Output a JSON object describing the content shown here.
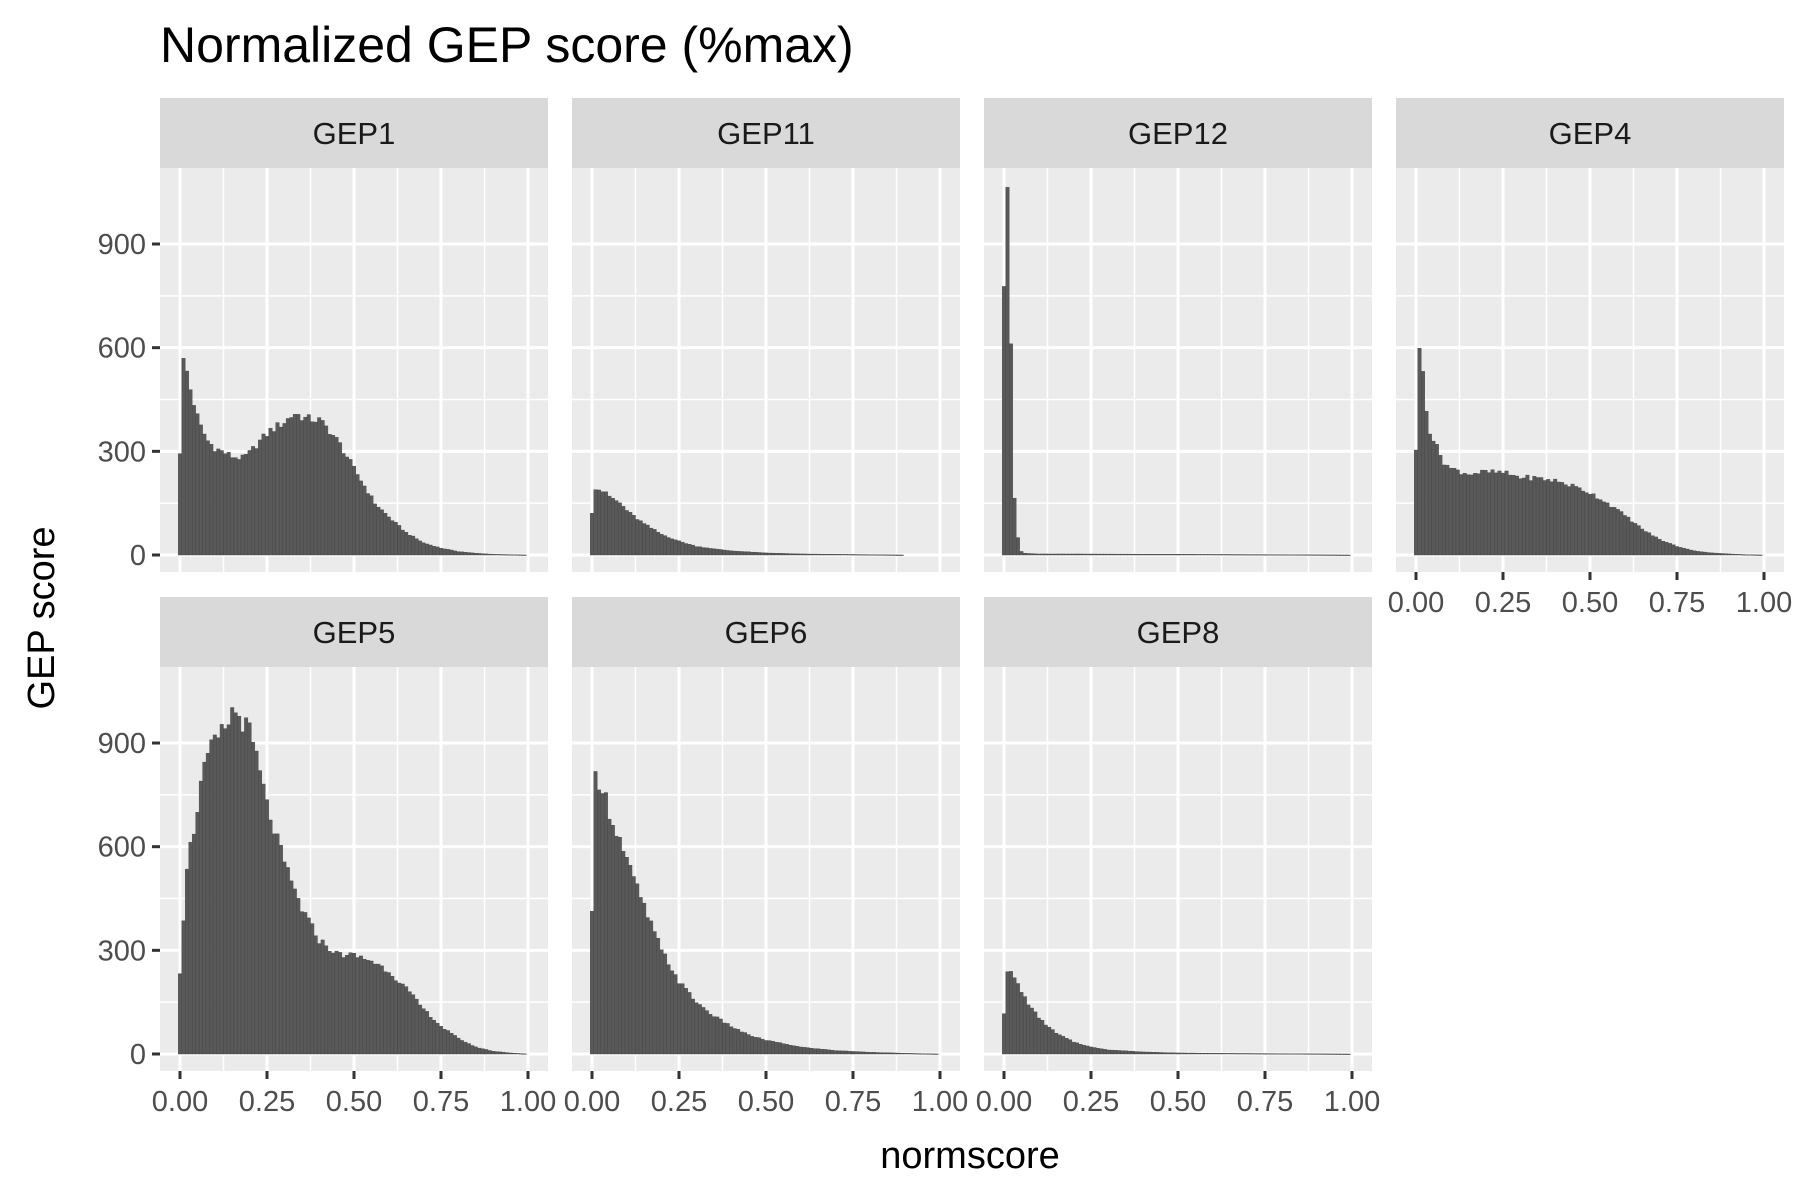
{
  "chart_data": {
    "type": "bar",
    "title": "Normalized GEP score (%max)",
    "xlabel": "normscore",
    "ylabel": "GEP score",
    "xlim": [
      0,
      1
    ],
    "ylim": [
      0,
      1120
    ],
    "x_ticks": [
      "0.00",
      "0.25",
      "0.50",
      "0.75",
      "1.00"
    ],
    "y_ticks": [
      "0",
      "300",
      "600",
      "900"
    ],
    "grid": true,
    "bar_fill": "#595959",
    "panel_background": "#ebebeb",
    "strip_background": "#d9d9d9",
    "bins": {
      "width": 0.01,
      "start": 0.0,
      "count": 101
    },
    "panels": [
      {
        "label": "GEP1",
        "keypoints": [
          [
            0.0,
            300
          ],
          [
            0.01,
            560
          ],
          [
            0.02,
            530
          ],
          [
            0.03,
            480
          ],
          [
            0.04,
            440
          ],
          [
            0.05,
            400
          ],
          [
            0.06,
            370
          ],
          [
            0.08,
            330
          ],
          [
            0.1,
            310
          ],
          [
            0.12,
            300
          ],
          [
            0.15,
            285
          ],
          [
            0.18,
            280
          ],
          [
            0.2,
            295
          ],
          [
            0.23,
            330
          ],
          [
            0.26,
            360
          ],
          [
            0.3,
            385
          ],
          [
            0.33,
            410
          ],
          [
            0.36,
            395
          ],
          [
            0.4,
            390
          ],
          [
            0.43,
            360
          ],
          [
            0.46,
            320
          ],
          [
            0.5,
            250
          ],
          [
            0.53,
            200
          ],
          [
            0.56,
            150
          ],
          [
            0.6,
            110
          ],
          [
            0.65,
            65
          ],
          [
            0.7,
            35
          ],
          [
            0.75,
            20
          ],
          [
            0.8,
            10
          ],
          [
            0.85,
            5
          ],
          [
            0.9,
            2
          ],
          [
            0.95,
            1
          ],
          [
            1.0,
            0
          ]
        ]
      },
      {
        "label": "GEP11",
        "keypoints": [
          [
            0.0,
            125
          ],
          [
            0.01,
            195
          ],
          [
            0.03,
            185
          ],
          [
            0.05,
            170
          ],
          [
            0.08,
            150
          ],
          [
            0.11,
            120
          ],
          [
            0.15,
            90
          ],
          [
            0.2,
            60
          ],
          [
            0.25,
            40
          ],
          [
            0.3,
            25
          ],
          [
            0.35,
            18
          ],
          [
            0.4,
            12
          ],
          [
            0.5,
            6
          ],
          [
            0.6,
            3
          ],
          [
            0.7,
            2
          ],
          [
            0.8,
            1
          ],
          [
            0.9,
            0
          ],
          [
            1.0,
            0
          ]
        ]
      },
      {
        "label": "GEP12",
        "keypoints": [
          [
            0.0,
            790
          ],
          [
            0.01,
            1070
          ],
          [
            0.02,
            620
          ],
          [
            0.03,
            160
          ],
          [
            0.04,
            50
          ],
          [
            0.05,
            10
          ],
          [
            0.06,
            5
          ],
          [
            0.1,
            3
          ],
          [
            0.2,
            3
          ],
          [
            0.5,
            2
          ],
          [
            0.8,
            1
          ],
          [
            1.0,
            0
          ]
        ]
      },
      {
        "label": "GEP4",
        "keypoints": [
          [
            0.0,
            310
          ],
          [
            0.01,
            585
          ],
          [
            0.02,
            530
          ],
          [
            0.03,
            430
          ],
          [
            0.04,
            360
          ],
          [
            0.06,
            310
          ],
          [
            0.08,
            270
          ],
          [
            0.1,
            250
          ],
          [
            0.15,
            235
          ],
          [
            0.2,
            240
          ],
          [
            0.25,
            238
          ],
          [
            0.3,
            225
          ],
          [
            0.35,
            222
          ],
          [
            0.4,
            215
          ],
          [
            0.45,
            200
          ],
          [
            0.5,
            180
          ],
          [
            0.55,
            150
          ],
          [
            0.6,
            115
          ],
          [
            0.65,
            75
          ],
          [
            0.7,
            45
          ],
          [
            0.75,
            25
          ],
          [
            0.8,
            12
          ],
          [
            0.85,
            6
          ],
          [
            0.9,
            3
          ],
          [
            0.95,
            1
          ],
          [
            1.0,
            0
          ]
        ]
      },
      {
        "label": "GEP5",
        "keypoints": [
          [
            0.0,
            240
          ],
          [
            0.02,
            550
          ],
          [
            0.04,
            650
          ],
          [
            0.06,
            780
          ],
          [
            0.08,
            860
          ],
          [
            0.1,
            900
          ],
          [
            0.13,
            940
          ],
          [
            0.15,
            990
          ],
          [
            0.17,
            980
          ],
          [
            0.2,
            930
          ],
          [
            0.22,
            860
          ],
          [
            0.25,
            720
          ],
          [
            0.3,
            550
          ],
          [
            0.35,
            420
          ],
          [
            0.4,
            330
          ],
          [
            0.45,
            290
          ],
          [
            0.5,
            285
          ],
          [
            0.55,
            270
          ],
          [
            0.6,
            240
          ],
          [
            0.65,
            190
          ],
          [
            0.7,
            130
          ],
          [
            0.75,
            80
          ],
          [
            0.8,
            45
          ],
          [
            0.85,
            20
          ],
          [
            0.9,
            8
          ],
          [
            0.95,
            3
          ],
          [
            1.0,
            0
          ]
        ]
      },
      {
        "label": "GEP6",
        "keypoints": [
          [
            0.0,
            400
          ],
          [
            0.01,
            800
          ],
          [
            0.03,
            780
          ],
          [
            0.05,
            700
          ],
          [
            0.08,
            620
          ],
          [
            0.1,
            560
          ],
          [
            0.13,
            480
          ],
          [
            0.16,
            400
          ],
          [
            0.2,
            300
          ],
          [
            0.25,
            210
          ],
          [
            0.3,
            150
          ],
          [
            0.35,
            110
          ],
          [
            0.4,
            80
          ],
          [
            0.45,
            55
          ],
          [
            0.5,
            40
          ],
          [
            0.6,
            20
          ],
          [
            0.7,
            10
          ],
          [
            0.8,
            5
          ],
          [
            0.9,
            2
          ],
          [
            1.0,
            0
          ]
        ]
      },
      {
        "label": "GEP8",
        "keypoints": [
          [
            0.0,
            120
          ],
          [
            0.01,
            245
          ],
          [
            0.03,
            220
          ],
          [
            0.05,
            180
          ],
          [
            0.08,
            130
          ],
          [
            0.11,
            95
          ],
          [
            0.15,
            60
          ],
          [
            0.2,
            35
          ],
          [
            0.25,
            20
          ],
          [
            0.3,
            12
          ],
          [
            0.4,
            6
          ],
          [
            0.5,
            3
          ],
          [
            0.6,
            2
          ],
          [
            0.8,
            1
          ],
          [
            1.0,
            0
          ]
        ]
      }
    ]
  }
}
